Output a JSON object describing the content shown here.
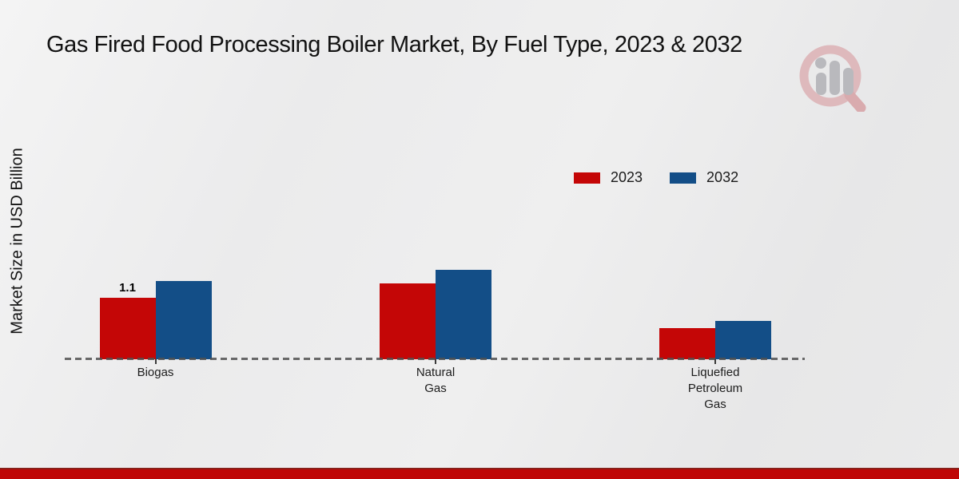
{
  "title": "Gas Fired Food Processing Boiler Market, By Fuel Type, 2023 & 2032",
  "y_axis_label": "Market Size in USD Billion",
  "colors": {
    "series_2023": "#c40606",
    "series_2032": "#134e87",
    "footer_bar": "#bf0505",
    "footer_bar_edge": "#87201a",
    "axis_dash": "#7f7f7f",
    "background": "#eaeaea"
  },
  "logo": {
    "name": "market-research-magnifier-watermark"
  },
  "chart_data": {
    "type": "bar",
    "title": "Gas Fired Food Processing Boiler Market, By Fuel Type, 2023 & 2032",
    "categories": [
      "Biogas",
      "Natural Gas",
      "Liquefied Petroleum Gas"
    ],
    "category_label_lines": [
      [
        "Biogas"
      ],
      [
        "Natural",
        "Gas"
      ],
      [
        "Liquefied",
        "Petroleum",
        "Gas"
      ]
    ],
    "series": [
      {
        "name": "2023",
        "color": "#c40606",
        "values": [
          1.1,
          1.35,
          0.55
        ]
      },
      {
        "name": "2032",
        "color": "#134e87",
        "values": [
          1.4,
          1.6,
          0.68
        ]
      }
    ],
    "data_labels": [
      {
        "series_index": 0,
        "category_index": 0,
        "text": "1.1"
      }
    ],
    "xlabel": "",
    "ylabel": "Market Size in USD Billion",
    "units": "USD Billion",
    "ylim": [
      0,
      2
    ],
    "grid": false,
    "baseline_style": "dashed",
    "legend_position": "upper-right"
  }
}
